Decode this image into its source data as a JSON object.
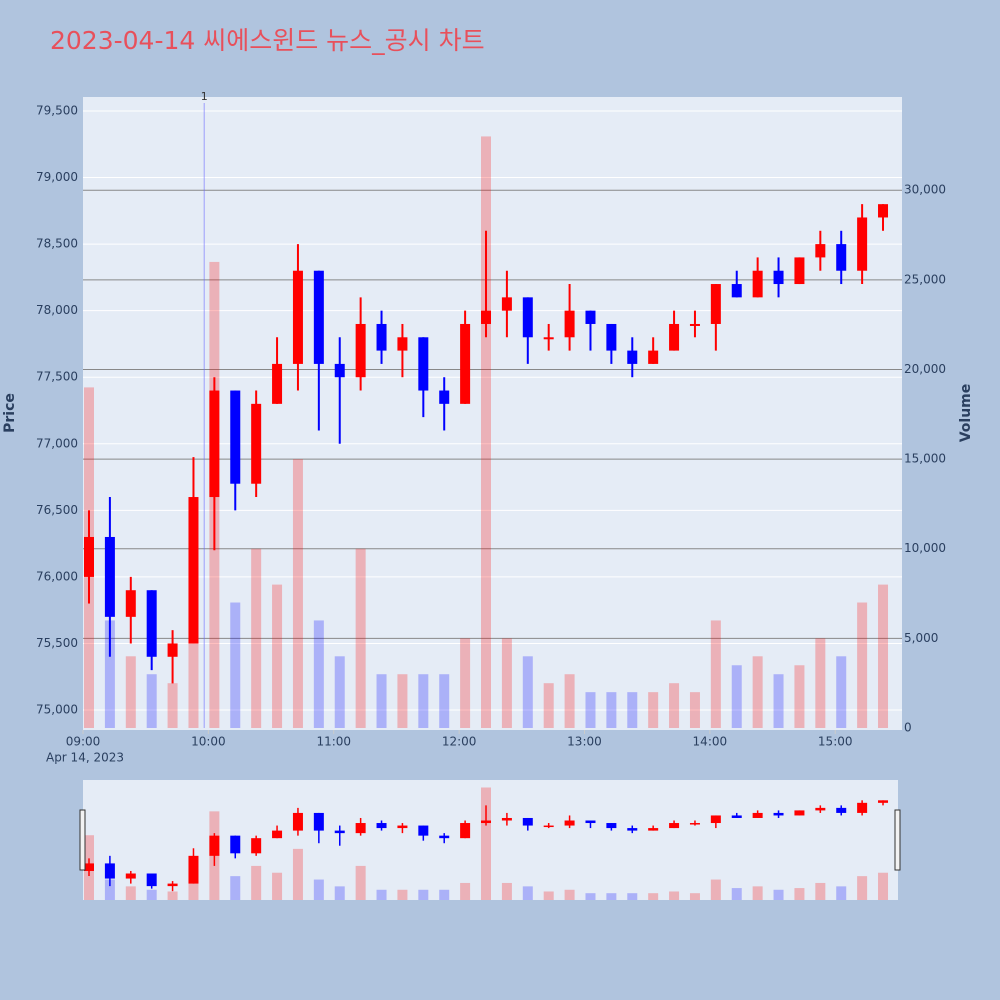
{
  "chart_data": {
    "type": "candlestick",
    "title": "2023-04-14 씨에스윈드 뉴스_공시 차트",
    "y_label": "Price",
    "y2_label": "Volume",
    "date_label": "Apr 14, 2023",
    "up_color": "#ff0000",
    "down_color": "#0000ff",
    "x": [
      "2023-04-14 09:00",
      "2023-04-14 09:10",
      "2023-04-14 09:20",
      "2023-04-14 09:30",
      "2023-04-14 09:40",
      "2023-04-14 09:50",
      "2023-04-14 10:00",
      "2023-04-14 10:10",
      "2023-04-14 10:20",
      "2023-04-14 10:30",
      "2023-04-14 10:40",
      "2023-04-14 10:50",
      "2023-04-14 11:00",
      "2023-04-14 11:10",
      "2023-04-14 11:20",
      "2023-04-14 11:30",
      "2023-04-14 11:40",
      "2023-04-14 11:50",
      "2023-04-14 12:00",
      "2023-04-14 12:10",
      "2023-04-14 12:20",
      "2023-04-14 12:30",
      "2023-04-14 12:40",
      "2023-04-14 12:50",
      "2023-04-14 13:00",
      "2023-04-14 13:10",
      "2023-04-14 13:20",
      "2023-04-14 13:30",
      "2023-04-14 13:40",
      "2023-04-14 13:50",
      "2023-04-14 14:00",
      "2023-04-14 14:10",
      "2023-04-14 14:20",
      "2023-04-14 14:30",
      "2023-04-14 14:40",
      "2023-04-14 14:50",
      "2023-04-14 15:00",
      "2023-04-14 15:10",
      "2023-04-14 15:20"
    ],
    "open": [
      76000,
      76300,
      75700,
      75900,
      75400,
      75500,
      76600,
      77400,
      76700,
      77300,
      77600,
      78300,
      77600,
      77500,
      77900,
      77700,
      77800,
      77400,
      77300,
      77900,
      78000,
      78100,
      77800,
      77800,
      78000,
      77900,
      77700,
      77600,
      77700,
      77900,
      77900,
      78200,
      78100,
      78300,
      78200,
      78400,
      78500,
      78300,
      78700
    ],
    "high": [
      76500,
      76600,
      76000,
      75900,
      75600,
      76900,
      77500,
      77400,
      77400,
      77800,
      78500,
      78300,
      77800,
      78100,
      78000,
      77900,
      77800,
      77500,
      78000,
      78600,
      78300,
      78100,
      77900,
      78200,
      78000,
      77900,
      77800,
      77800,
      78000,
      78000,
      78200,
      78300,
      78400,
      78400,
      78400,
      78600,
      78600,
      78800,
      78800
    ],
    "low": [
      75800,
      75400,
      75500,
      75300,
      75200,
      75500,
      76200,
      76500,
      76600,
      77300,
      77400,
      77100,
      77000,
      77400,
      77600,
      77500,
      77200,
      77100,
      77300,
      77800,
      77800,
      77600,
      77700,
      77700,
      77700,
      77600,
      77500,
      77600,
      77700,
      77800,
      77700,
      78100,
      78100,
      78100,
      78200,
      78300,
      78200,
      78200,
      78600
    ],
    "close": [
      76300,
      75700,
      75900,
      75400,
      75500,
      76600,
      77400,
      76700,
      77300,
      77600,
      78300,
      77600,
      77500,
      77900,
      77700,
      77800,
      77400,
      77300,
      77900,
      78000,
      78100,
      77800,
      77800,
      78000,
      77900,
      77700,
      77600,
      77700,
      77900,
      77900,
      78200,
      78100,
      78300,
      78200,
      78400,
      78500,
      78300,
      78700,
      78800
    ],
    "volume": [
      19000,
      6000,
      4000,
      3000,
      2500,
      9000,
      26000,
      7000,
      10000,
      8000,
      15000,
      6000,
      4000,
      10000,
      3000,
      3000,
      3000,
      3000,
      5000,
      33000,
      5000,
      4000,
      2500,
      3000,
      2000,
      2000,
      2000,
      2000,
      2500,
      2000,
      6000,
      3500,
      4000,
      3000,
      3500,
      5000,
      4000,
      7000,
      8000
    ],
    "xlim": [
      "2023-04-14 09:00",
      "2023-04-14 15:31"
    ],
    "xticks": [
      {
        "value": "2023-04-14 09:00",
        "label": "09:00"
      },
      {
        "value": "2023-04-14 10:00",
        "label": "10:00"
      },
      {
        "value": "2023-04-14 11:00",
        "label": "11:00"
      },
      {
        "value": "2023-04-14 12:00",
        "label": "12:00"
      },
      {
        "value": "2023-04-14 13:00",
        "label": "13:00"
      },
      {
        "value": "2023-04-14 14:00",
        "label": "14:00"
      },
      {
        "value": "2023-04-14 15:00",
        "label": "15:00"
      }
    ],
    "ylim": [
      74850,
      79605
    ],
    "yticks": [
      {
        "value": 75000,
        "label": "75,000"
      },
      {
        "value": 75500,
        "label": "75,500"
      },
      {
        "value": 76000,
        "label": "76,000"
      },
      {
        "value": 76500,
        "label": "76,500"
      },
      {
        "value": 77000,
        "label": "77,000"
      },
      {
        "value": 77500,
        "label": "77,500"
      },
      {
        "value": 78000,
        "label": "78,000"
      },
      {
        "value": 78500,
        "label": "78,500"
      },
      {
        "value": 79000,
        "label": "79,000"
      },
      {
        "value": 79500,
        "label": "79,500"
      }
    ],
    "y2lim": [
      0,
      35200
    ],
    "y2ticks": [
      0,
      {
        "value": 5000,
        "label": "5,000"
      },
      {
        "value": 10000,
        "label": "10,000"
      },
      {
        "value": 15000,
        "label": "15,000"
      },
      {
        "value": 20000,
        "label": "20,000"
      },
      {
        "value": 25000,
        "label": "25,000"
      },
      {
        "value": 30000,
        "label": "30,000"
      }
    ],
    "annotation": {
      "x": "2023-04-14 09:58",
      "text": "1"
    }
  }
}
